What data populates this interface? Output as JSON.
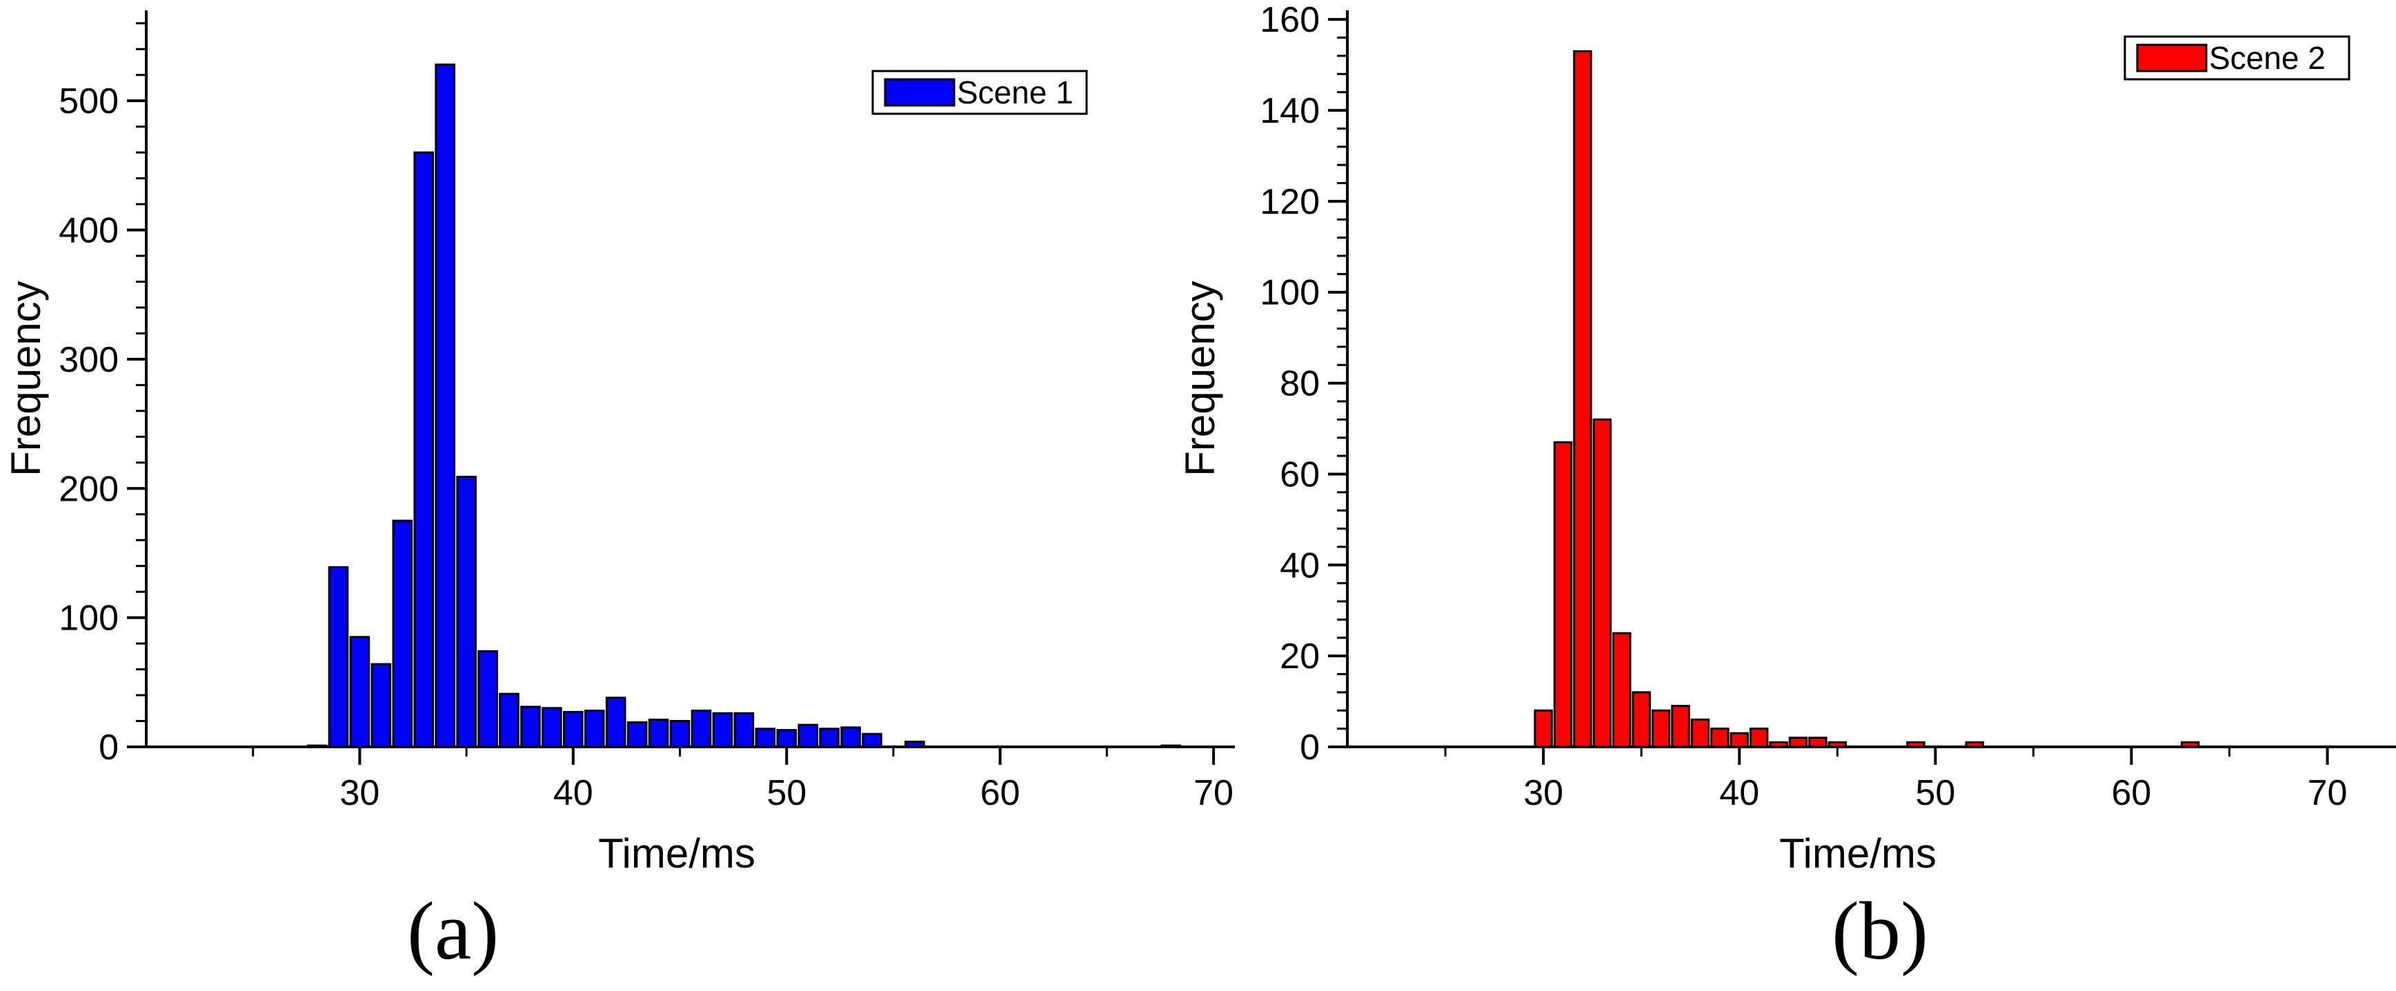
{
  "chart_data": [
    {
      "type": "bar",
      "xlabel": "Time/ms",
      "ylabel": "Frequency",
      "xlim": [
        20,
        71
      ],
      "ylim": [
        0,
        570
      ],
      "xticks": [
        30,
        40,
        50,
        60,
        70
      ],
      "yticks": [
        0,
        100,
        200,
        300,
        400,
        500
      ],
      "legend_position": "top-right",
      "series": [
        {
          "name": "Scene 1",
          "color": "#0000ff",
          "x": [
            28,
            29,
            30,
            31,
            32,
            33,
            34,
            35,
            36,
            37,
            38,
            39,
            40,
            41,
            42,
            43,
            44,
            45,
            46,
            47,
            48,
            49,
            50,
            51,
            52,
            53,
            54,
            56,
            68
          ],
          "values": [
            1,
            139,
            85,
            64,
            175,
            460,
            528,
            209,
            74,
            41,
            31,
            30,
            27,
            28,
            38,
            19,
            21,
            20,
            28,
            26,
            26,
            14,
            13,
            17,
            14,
            15,
            10,
            4,
            1
          ]
        }
      ],
      "panel_label": "(a)"
    },
    {
      "type": "bar",
      "xlabel": "Time/ms",
      "ylabel": "Frequency",
      "xlim": [
        20,
        73.5
      ],
      "ylim": [
        0,
        162
      ],
      "xticks": [
        30,
        40,
        50,
        60,
        70
      ],
      "yticks": [
        0,
        20,
        40,
        60,
        80,
        100,
        120,
        140,
        160
      ],
      "legend_position": "top-right",
      "series": [
        {
          "name": "Scene 2",
          "color": "#ff0000",
          "x": [
            30,
            31,
            32,
            33,
            34,
            35,
            36,
            37,
            38,
            39,
            40,
            41,
            42,
            43,
            44,
            45,
            49,
            52,
            63
          ],
          "values": [
            8,
            67,
            153,
            72,
            25,
            12,
            8,
            9,
            6,
            4,
            3,
            4,
            1,
            2,
            2,
            1,
            1,
            1,
            1
          ]
        }
      ],
      "panel_label": "(b)"
    }
  ]
}
